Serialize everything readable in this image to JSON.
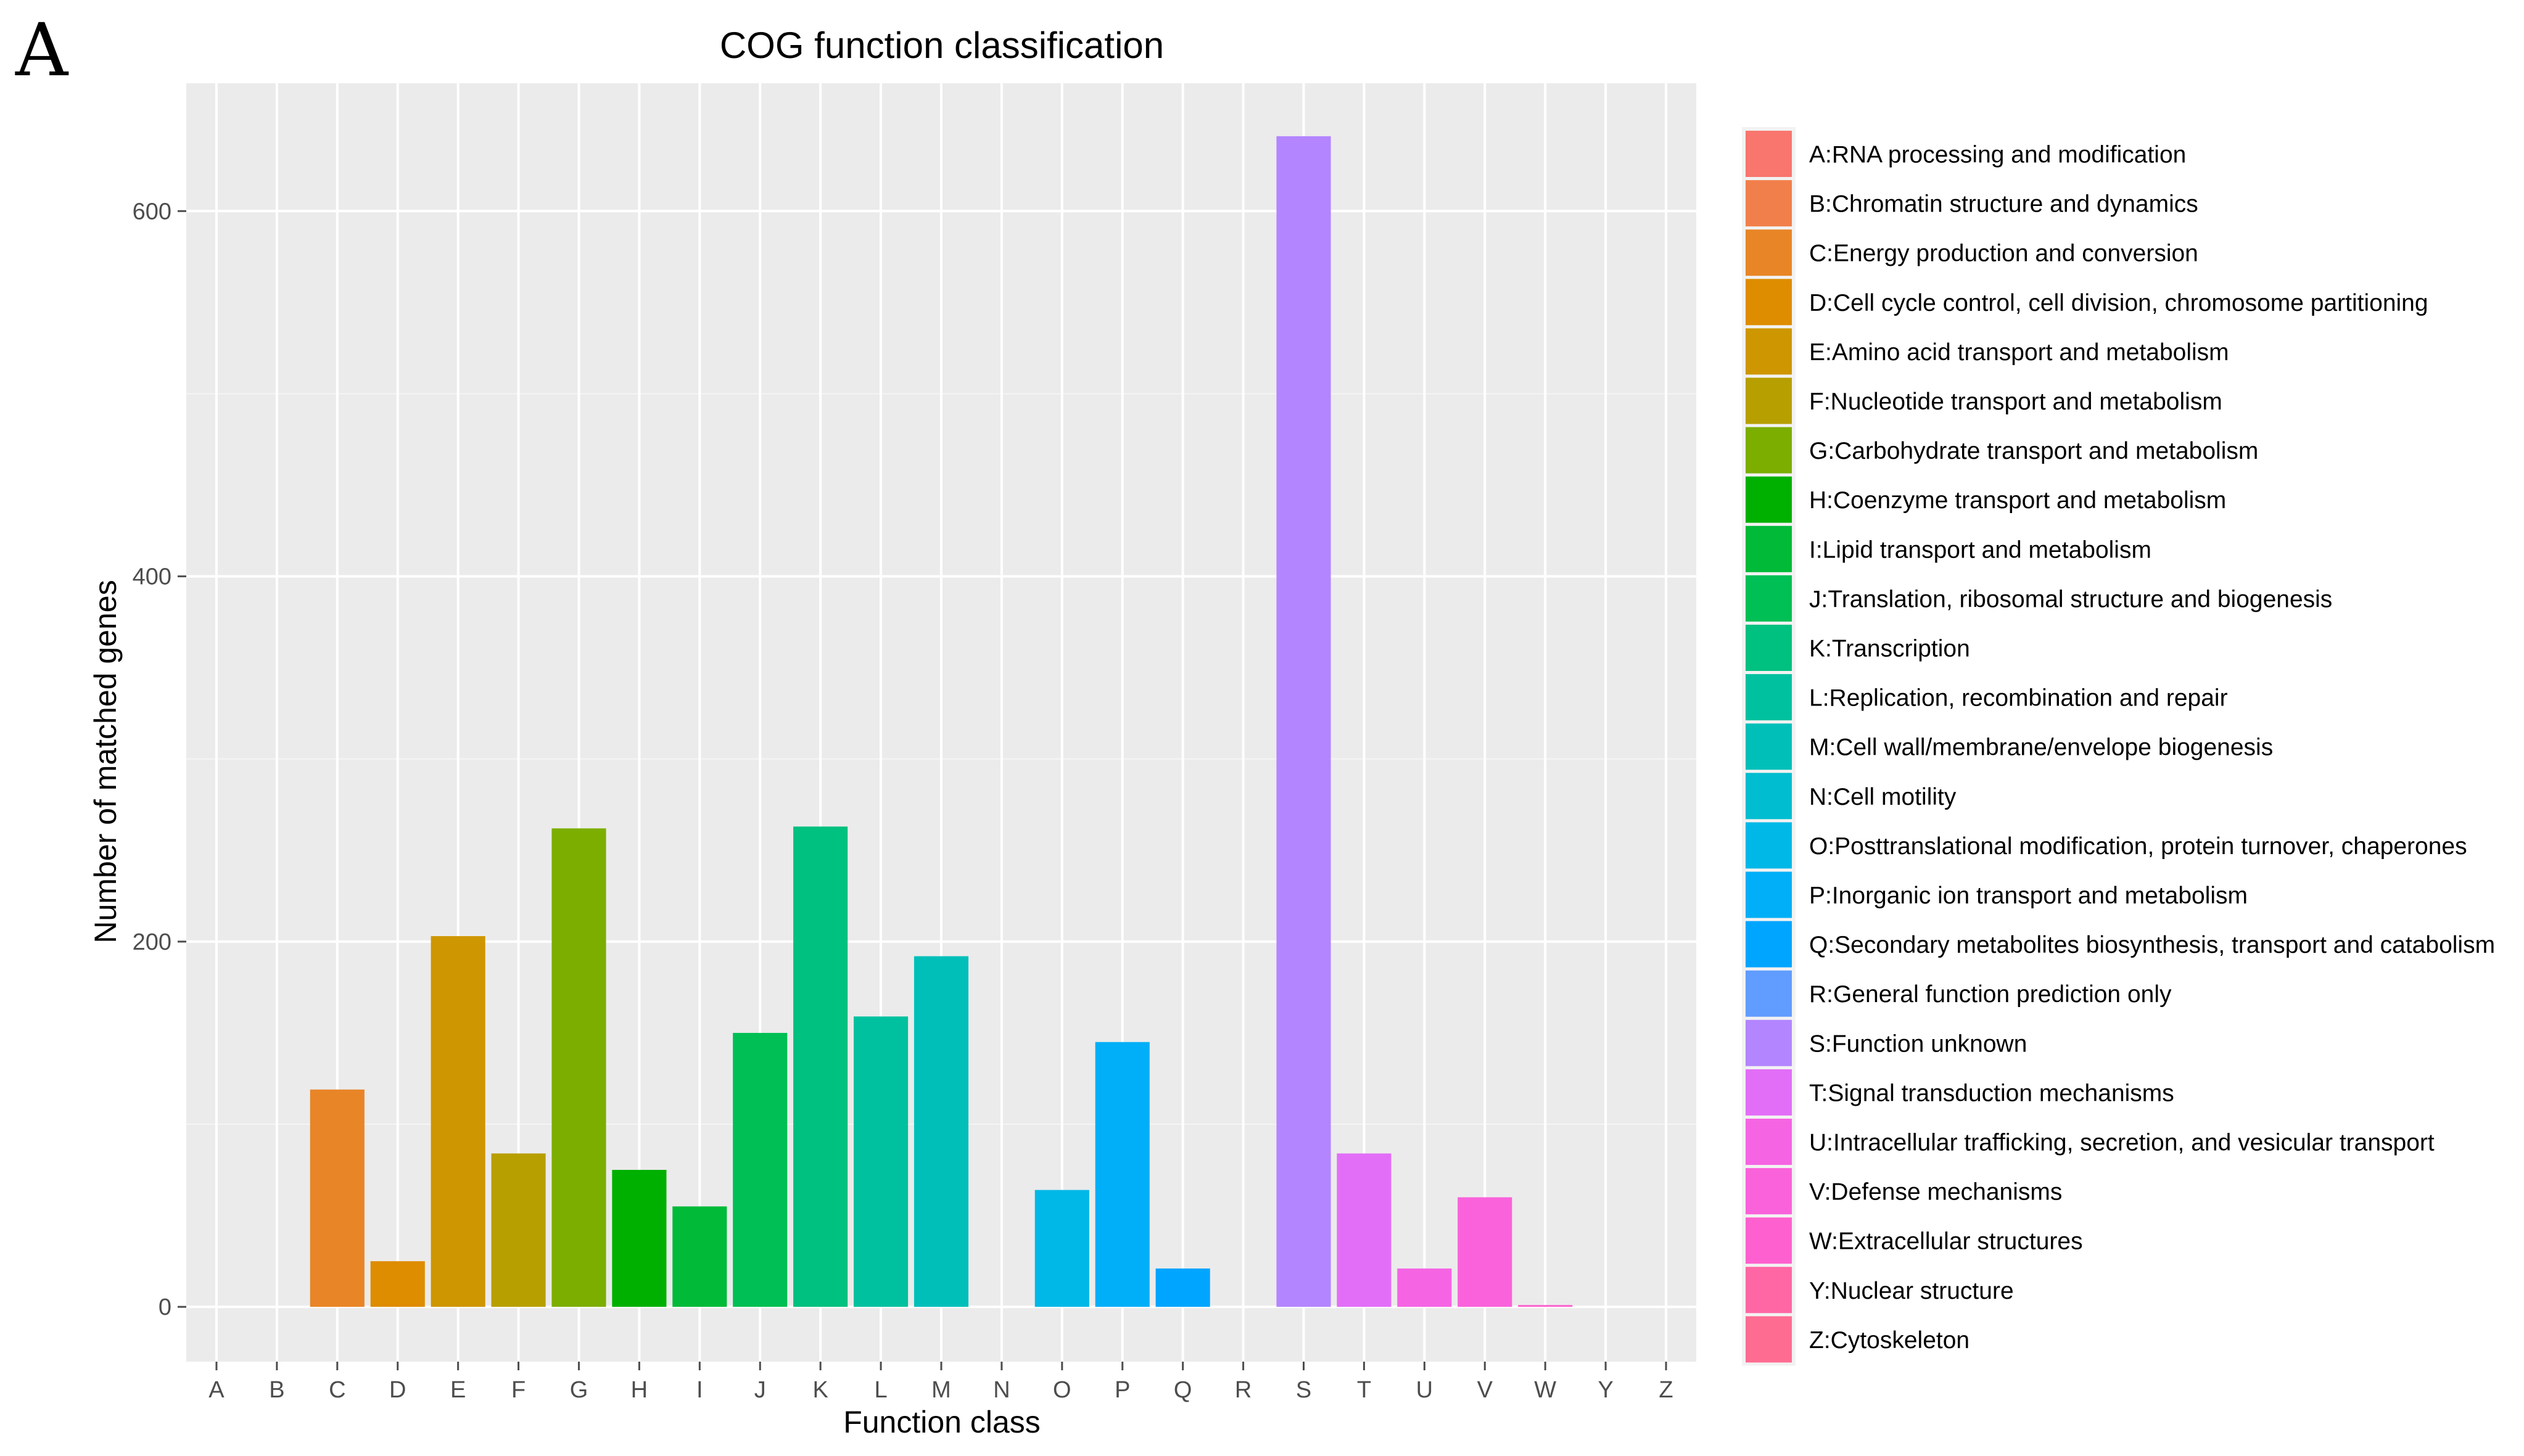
{
  "panel_label": "A",
  "chart_data": {
    "type": "bar",
    "title": "COG function classification",
    "xlabel": "Function class",
    "ylabel": "Number of matched genes",
    "ylim": [
      -30,
      670
    ],
    "yticks": [
      0,
      200,
      400,
      600
    ],
    "grid": true,
    "legend_position": "right",
    "categories": [
      "A",
      "B",
      "C",
      "D",
      "E",
      "F",
      "G",
      "H",
      "I",
      "J",
      "K",
      "L",
      "M",
      "N",
      "O",
      "P",
      "Q",
      "R",
      "S",
      "T",
      "U",
      "V",
      "W",
      "Y",
      "Z"
    ],
    "values": [
      0,
      0,
      119,
      25,
      203,
      84,
      262,
      75,
      55,
      150,
      263,
      159,
      192,
      0,
      64,
      145,
      21,
      0,
      641,
      84,
      21,
      60,
      1,
      0,
      0
    ],
    "colors": [
      "#F8766D",
      "#F17F4B",
      "#E88526",
      "#DE8C00",
      "#CE9600",
      "#B79F00",
      "#7CAE00",
      "#00B000",
      "#00BA38",
      "#00BF54",
      "#00C17F",
      "#00C19F",
      "#00BFB9",
      "#00BDD0",
      "#00B8E7",
      "#00AFF7",
      "#00A5FF",
      "#619CFF",
      "#B385FF",
      "#E26EF7",
      "#F564E3",
      "#FA62DB",
      "#FE61CF",
      "#FF67A4",
      "#FF6C91"
    ],
    "legend": [
      "A:RNA processing and modification",
      "B:Chromatin structure and dynamics",
      "C:Energy production and conversion",
      "D:Cell cycle control, cell division, chromosome partitioning",
      "E:Amino acid transport and metabolism",
      "F:Nucleotide transport and metabolism",
      "G:Carbohydrate transport and metabolism",
      "H:Coenzyme transport and metabolism",
      "I:Lipid transport and metabolism",
      "J:Translation, ribosomal structure and biogenesis",
      "K:Transcription",
      "L:Replication, recombination and repair",
      "M:Cell wall/membrane/envelope biogenesis",
      "N:Cell motility",
      "O:Posttranslational modification, protein turnover, chaperones",
      "P:Inorganic ion transport and metabolism",
      "Q:Secondary metabolites biosynthesis, transport and catabolism",
      "R:General function prediction only",
      "S:Function unknown",
      "T:Signal transduction mechanisms",
      "U:Intracellular trafficking, secretion, and vesicular transport",
      "V:Defense mechanisms",
      "W:Extracellular structures",
      "Y:Nuclear structure",
      "Z:Cytoskeleton"
    ]
  },
  "style": {
    "panel_background": "#EBEBEB",
    "grid_major": "#FFFFFF",
    "grid_minor": "#F5F5F5",
    "tick_color": "#4D4D4D",
    "text_color": "#000000"
  }
}
